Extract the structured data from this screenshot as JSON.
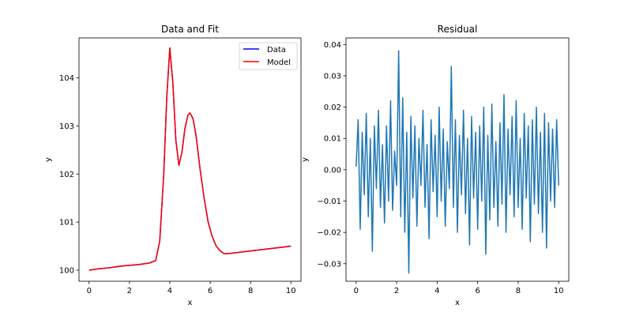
{
  "chart_data": [
    {
      "type": "line",
      "title": "Data and Fit",
      "xlabel": "x",
      "ylabel": "y",
      "xlim": [
        -0.5,
        10.5
      ],
      "ylim": [
        99.77,
        104.83
      ],
      "xticks": [
        0,
        2,
        4,
        6,
        8,
        10
      ],
      "yticks": [
        100,
        101,
        102,
        103,
        104
      ],
      "legend_position": "top-right",
      "series": [
        {
          "name": "Data",
          "color": "#0000ff",
          "x": [
            0,
            0.5,
            1,
            1.5,
            2,
            2.5,
            3,
            3.3,
            3.5,
            3.7,
            3.85,
            4,
            4.15,
            4.3,
            4.45,
            4.6,
            4.75,
            4.9,
            5,
            5.15,
            5.3,
            5.5,
            5.7,
            5.9,
            6.1,
            6.3,
            6.5,
            6.7,
            7,
            8,
            9,
            10
          ],
          "y": [
            100.0,
            100.03,
            100.05,
            100.08,
            100.1,
            100.12,
            100.15,
            100.2,
            100.6,
            102.0,
            103.6,
            104.62,
            103.9,
            102.7,
            102.18,
            102.45,
            102.95,
            103.23,
            103.27,
            103.15,
            102.8,
            102.1,
            101.5,
            101.0,
            100.7,
            100.5,
            100.4,
            100.34,
            100.35,
            100.4,
            100.45,
            100.5
          ]
        },
        {
          "name": "Model",
          "color": "#ff0000",
          "x": [
            0,
            0.5,
            1,
            1.5,
            2,
            2.5,
            3,
            3.3,
            3.5,
            3.7,
            3.85,
            4,
            4.15,
            4.3,
            4.45,
            4.6,
            4.75,
            4.9,
            5,
            5.15,
            5.3,
            5.5,
            5.7,
            5.9,
            6.1,
            6.3,
            6.5,
            6.7,
            7,
            8,
            9,
            10
          ],
          "y": [
            100.0,
            100.03,
            100.05,
            100.08,
            100.1,
            100.12,
            100.15,
            100.2,
            100.6,
            102.0,
            103.6,
            104.62,
            103.9,
            102.7,
            102.18,
            102.45,
            102.95,
            103.23,
            103.27,
            103.15,
            102.8,
            102.1,
            101.5,
            101.0,
            100.7,
            100.5,
            100.4,
            100.34,
            100.35,
            100.4,
            100.45,
            100.5
          ]
        }
      ]
    },
    {
      "type": "line",
      "title": "Residual",
      "xlabel": "x",
      "ylabel": "y",
      "xlim": [
        -0.5,
        10.5
      ],
      "ylim": [
        -0.0356,
        0.0421
      ],
      "xticks": [
        0,
        2,
        4,
        6,
        8,
        10
      ],
      "yticks": [
        -0.03,
        -0.02,
        -0.01,
        0.0,
        0.01,
        0.02,
        0.03,
        0.04
      ],
      "ytick_labels": [
        "−0.03",
        "−0.02",
        "−0.01",
        "0.00",
        "0.01",
        "0.02",
        "0.03",
        "0.04"
      ],
      "series": [
        {
          "name": "Residual",
          "color": "#1f77b4",
          "x": [
            0,
            0.1,
            0.2,
            0.3,
            0.4,
            0.5,
            0.6,
            0.7,
            0.8,
            0.9,
            1,
            1.1,
            1.2,
            1.3,
            1.4,
            1.5,
            1.6,
            1.7,
            1.8,
            1.9,
            2,
            2.1,
            2.2,
            2.3,
            2.4,
            2.5,
            2.6,
            2.7,
            2.8,
            2.9,
            3,
            3.1,
            3.2,
            3.3,
            3.4,
            3.5,
            3.6,
            3.7,
            3.8,
            3.9,
            4,
            4.1,
            4.2,
            4.3,
            4.4,
            4.5,
            4.6,
            4.7,
            4.8,
            4.9,
            5,
            5.1,
            5.2,
            5.3,
            5.4,
            5.5,
            5.6,
            5.7,
            5.8,
            5.9,
            6,
            6.1,
            6.2,
            6.3,
            6.4,
            6.5,
            6.6,
            6.7,
            6.8,
            6.9,
            7,
            7.1,
            7.2,
            7.3,
            7.4,
            7.5,
            7.6,
            7.7,
            7.8,
            7.9,
            8,
            8.1,
            8.2,
            8.3,
            8.4,
            8.5,
            8.6,
            8.7,
            8.8,
            8.9,
            9,
            9.1,
            9.2,
            9.3,
            9.4,
            9.5,
            9.6,
            9.7,
            9.8,
            9.9,
            10
          ],
          "y": [
            0.001,
            0.016,
            -0.019,
            0.012,
            -0.008,
            0.018,
            -0.015,
            0.01,
            -0.026,
            0.014,
            -0.006,
            0.019,
            -0.012,
            0.008,
            -0.017,
            0.014,
            -0.01,
            0.022,
            -0.013,
            0.006,
            -0.005,
            0.038,
            -0.015,
            0.023,
            -0.02,
            0.012,
            -0.033,
            0.017,
            -0.009,
            0.014,
            -0.018,
            0.01,
            -0.005,
            0.019,
            -0.012,
            0.008,
            -0.022,
            0.016,
            -0.007,
            0.011,
            -0.015,
            0.02,
            -0.01,
            0.013,
            -0.018,
            0.009,
            -0.006,
            0.033,
            -0.012,
            0.016,
            -0.02,
            0.011,
            -0.008,
            0.019,
            -0.014,
            0.01,
            -0.024,
            0.017,
            -0.009,
            0.012,
            -0.019,
            0.014,
            -0.01,
            0.02,
            -0.027,
            0.011,
            -0.016,
            0.021,
            -0.012,
            0.009,
            -0.018,
            0.015,
            -0.011,
            0.024,
            -0.02,
            0.013,
            -0.008,
            0.017,
            -0.015,
            0.022,
            -0.012,
            0.01,
            -0.019,
            0.018,
            -0.009,
            0.014,
            -0.023,
            0.016,
            -0.011,
            0.02,
            -0.014,
            0.012,
            -0.02,
            0.018,
            -0.025,
            0.015,
            -0.01,
            0.013,
            -0.012,
            0.016,
            -0.005
          ]
        }
      ]
    }
  ]
}
